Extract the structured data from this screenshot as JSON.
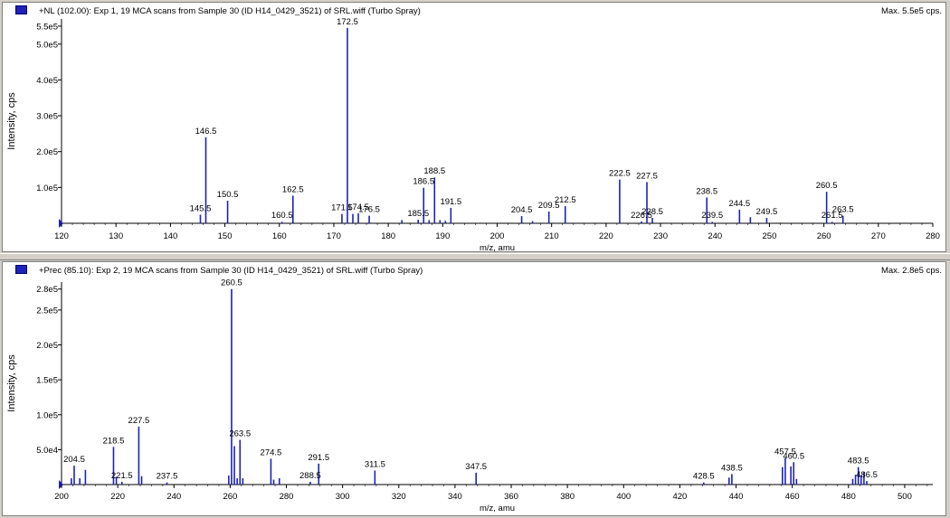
{
  "colors": {
    "series": "#1d22b8",
    "axis": "#000000",
    "background": "#ffffff"
  },
  "chart_data": [
    {
      "type": "bar",
      "title": "+NL (102.00): Exp 1, 19 MCA scans from Sample 30 (ID H14_0429_3521) of SRL.wiff (Turbo Spray)",
      "max_label": "Max. 5.5e5 cps.",
      "xlabel": "m/z, amu",
      "ylabel": "Intensity, cps",
      "xlim": [
        120,
        280
      ],
      "ylim": [
        0,
        570000
      ],
      "x_ticks": [
        120,
        130,
        140,
        150,
        160,
        170,
        180,
        190,
        200,
        210,
        220,
        230,
        240,
        250,
        260,
        270,
        280
      ],
      "y_ticks": [
        {
          "value": 100000,
          "label": "1.0e5"
        },
        {
          "value": 200000,
          "label": "2.0e5"
        },
        {
          "value": 300000,
          "label": "3.0e5"
        },
        {
          "value": 400000,
          "label": "4.0e5"
        },
        {
          "value": 500000,
          "label": "5.0e5"
        },
        {
          "value": 550000,
          "label": "5.5e5"
        }
      ],
      "peaks": [
        {
          "x": 145.5,
          "y": 24000,
          "label": "145.5"
        },
        {
          "x": 146.5,
          "y": 240000,
          "label": "146.5"
        },
        {
          "x": 150.5,
          "y": 63000,
          "label": "150.5"
        },
        {
          "x": 160.5,
          "y": 4000,
          "label": "160.5"
        },
        {
          "x": 162.5,
          "y": 77000,
          "label": "162.5"
        },
        {
          "x": 171.5,
          "y": 26000,
          "label": "171.5"
        },
        {
          "x": 172.5,
          "y": 545000,
          "label": "172.5"
        },
        {
          "x": 173.5,
          "y": 26000,
          "label": ""
        },
        {
          "x": 174.5,
          "y": 28000,
          "label": "174.5"
        },
        {
          "x": 176.5,
          "y": 21000,
          "label": "176.5"
        },
        {
          "x": 182.5,
          "y": 9000,
          "label": ""
        },
        {
          "x": 185.5,
          "y": 10000,
          "label": "185.5"
        },
        {
          "x": 186.5,
          "y": 99000,
          "label": "186.5"
        },
        {
          "x": 187.5,
          "y": 9000,
          "label": ""
        },
        {
          "x": 188.5,
          "y": 128000,
          "label": "188.5"
        },
        {
          "x": 189.5,
          "y": 9000,
          "label": ""
        },
        {
          "x": 190.5,
          "y": 7000,
          "label": ""
        },
        {
          "x": 191.5,
          "y": 43000,
          "label": "191.5"
        },
        {
          "x": 204.5,
          "y": 20000,
          "label": "204.5"
        },
        {
          "x": 206.5,
          "y": 6000,
          "label": ""
        },
        {
          "x": 209.5,
          "y": 33000,
          "label": "209.5"
        },
        {
          "x": 212.5,
          "y": 48000,
          "label": "212.5"
        },
        {
          "x": 222.5,
          "y": 122000,
          "label": "222.5"
        },
        {
          "x": 226.5,
          "y": 5000,
          "label": "226.5"
        },
        {
          "x": 227.5,
          "y": 115000,
          "label": "227.5"
        },
        {
          "x": 228.5,
          "y": 15000,
          "label": "228.5"
        },
        {
          "x": 238.5,
          "y": 72000,
          "label": "238.5"
        },
        {
          "x": 239.5,
          "y": 4000,
          "label": "239.5"
        },
        {
          "x": 244.5,
          "y": 38000,
          "label": "244.5"
        },
        {
          "x": 246.5,
          "y": 17000,
          "label": ""
        },
        {
          "x": 249.5,
          "y": 15000,
          "label": "249.5"
        },
        {
          "x": 260.5,
          "y": 88000,
          "label": "260.5"
        },
        {
          "x": 261.5,
          "y": 4000,
          "label": "261.5"
        },
        {
          "x": 263.5,
          "y": 21000,
          "label": "263.5"
        }
      ]
    },
    {
      "type": "bar",
      "title": "+Prec (85.10): Exp 2, 19 MCA scans from Sample 30 (ID H14_0429_3521) of SRL.wiff (Turbo Spray)",
      "max_label": "Max. 2.8e5 cps.",
      "xlabel": "m/z, amu",
      "ylabel": "Intensity, cps",
      "xlim": [
        200,
        510
      ],
      "ylim": [
        0,
        290000
      ],
      "x_ticks": [
        200,
        220,
        240,
        260,
        280,
        300,
        320,
        340,
        360,
        380,
        400,
        420,
        440,
        460,
        480,
        500
      ],
      "y_ticks": [
        {
          "value": 50000,
          "label": "5.0e4"
        },
        {
          "value": 100000,
          "label": "1.0e5"
        },
        {
          "value": 150000,
          "label": "1.5e5"
        },
        {
          "value": 200000,
          "label": "2.0e5"
        },
        {
          "value": 250000,
          "label": "2.5e5"
        },
        {
          "value": 280000,
          "label": "2.8e5"
        }
      ],
      "peaks": [
        {
          "x": 203.5,
          "y": 9000,
          "label": ""
        },
        {
          "x": 204.5,
          "y": 27000,
          "label": "204.5"
        },
        {
          "x": 206.5,
          "y": 9000,
          "label": ""
        },
        {
          "x": 208.5,
          "y": 21000,
          "label": ""
        },
        {
          "x": 218.5,
          "y": 54000,
          "label": "218.5"
        },
        {
          "x": 219.5,
          "y": 11000,
          "label": ""
        },
        {
          "x": 221.5,
          "y": 4000,
          "label": "221.5"
        },
        {
          "x": 227.5,
          "y": 83000,
          "label": "227.5"
        },
        {
          "x": 228.5,
          "y": 12000,
          "label": ""
        },
        {
          "x": 237.5,
          "y": 3000,
          "label": "237.5"
        },
        {
          "x": 259.5,
          "y": 13000,
          "label": ""
        },
        {
          "x": 260.5,
          "y": 280000,
          "label": "260.5"
        },
        {
          "x": 261.5,
          "y": 55000,
          "label": ""
        },
        {
          "x": 262.5,
          "y": 9000,
          "label": ""
        },
        {
          "x": 263.5,
          "y": 64000,
          "label": "263.5"
        },
        {
          "x": 264.5,
          "y": 9000,
          "label": ""
        },
        {
          "x": 274.5,
          "y": 37000,
          "label": "274.5"
        },
        {
          "x": 275.5,
          "y": 7000,
          "label": ""
        },
        {
          "x": 277.5,
          "y": 9000,
          "label": ""
        },
        {
          "x": 288.5,
          "y": 4000,
          "label": "288.5"
        },
        {
          "x": 291.5,
          "y": 30000,
          "label": "291.5"
        },
        {
          "x": 311.5,
          "y": 20000,
          "label": "311.5"
        },
        {
          "x": 347.5,
          "y": 17000,
          "label": "347.5"
        },
        {
          "x": 428.5,
          "y": 3000,
          "label": "428.5"
        },
        {
          "x": 437.5,
          "y": 10000,
          "label": ""
        },
        {
          "x": 438.5,
          "y": 15000,
          "label": "438.5"
        },
        {
          "x": 456.5,
          "y": 25000,
          "label": ""
        },
        {
          "x": 457.5,
          "y": 38000,
          "label": "457.5"
        },
        {
          "x": 459.5,
          "y": 26000,
          "label": ""
        },
        {
          "x": 460.5,
          "y": 32000,
          "label": "460.5"
        },
        {
          "x": 461.5,
          "y": 8000,
          "label": ""
        },
        {
          "x": 481.5,
          "y": 8000,
          "label": ""
        },
        {
          "x": 482.5,
          "y": 14000,
          "label": ""
        },
        {
          "x": 483.5,
          "y": 25000,
          "label": "483.5"
        },
        {
          "x": 484.5,
          "y": 13000,
          "label": ""
        },
        {
          "x": 485.5,
          "y": 18000,
          "label": ""
        },
        {
          "x": 486.5,
          "y": 5000,
          "label": "486.5"
        }
      ]
    }
  ]
}
